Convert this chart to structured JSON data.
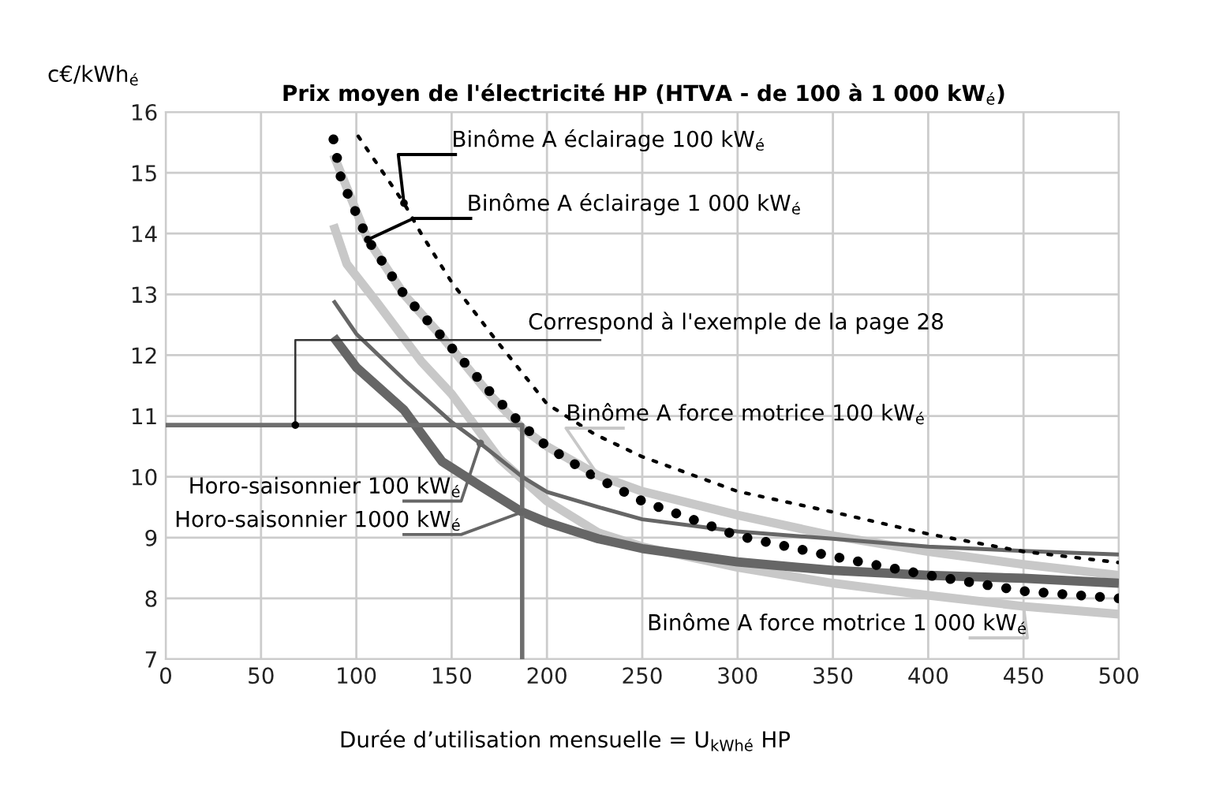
{
  "chart_data": {
    "type": "line",
    "title": "Prix moyen de l'électricité HP (HTVA - de 100 à 1 000 kW$_{é}$)",
    "xlabel": "Durée d’utilisation mensuelle = U$_{kWhé}$ HP",
    "ylabel": "c€/kWh$_{é}$",
    "xlim": [
      0,
      500
    ],
    "ylim": [
      7,
      16
    ],
    "xticks": [
      0,
      50,
      100,
      150,
      200,
      250,
      300,
      350,
      400,
      450,
      500
    ],
    "yticks": [
      7,
      8,
      9,
      10,
      11,
      12,
      13,
      14,
      15,
      16
    ],
    "grid": true,
    "series": [
      {
        "name": "Binôme A éclairage 100 kW$_{é}$",
        "color": "#000000",
        "line_style": "dotted",
        "x": [
          101,
          125,
          134,
          150,
          172,
          200,
          225,
          250,
          300,
          350,
          400,
          450,
          500
        ],
        "values": [
          15.6,
          14.5,
          14.0,
          13.2,
          12.3,
          11.2,
          10.7,
          10.33,
          9.76,
          9.42,
          9.06,
          8.77,
          8.59
        ]
      },
      {
        "name": "Binôme A éclairage 1 000 kW$_{é}$",
        "color": "#000000",
        "line_style": "dotted",
        "x": [
          88,
          92,
          106,
          125,
          145,
          170,
          187,
          200,
          225,
          250,
          300,
          350,
          400,
          450,
          500
        ],
        "values": [
          15.55,
          14.9,
          13.9,
          13.0,
          12.3,
          11.4,
          10.85,
          10.5,
          10.0,
          9.6,
          9.03,
          8.69,
          8.38,
          8.12,
          8.0
        ]
      },
      {
        "name": "Binôme A force motrice 100 kW$_{é}$",
        "color": "#c8c8c8",
        "line_style": "solid",
        "x": [
          88,
          106,
          125,
          145,
          170,
          187,
          200,
          227,
          250,
          300,
          350,
          400,
          450,
          500
        ],
        "values": [
          15.3,
          13.9,
          13.0,
          12.3,
          11.35,
          10.8,
          10.5,
          10.02,
          9.76,
          9.37,
          9.03,
          8.77,
          8.56,
          8.38
        ]
      },
      {
        "name": "Binôme A force motrice 1 000 kW$_{é}$",
        "color": "#c8c8c8",
        "line_style": "solid",
        "x": [
          88,
          95,
          110,
          134,
          150,
          175,
          200,
          227,
          250,
          300,
          350,
          400,
          450,
          500
        ],
        "values": [
          14.15,
          13.5,
          12.9,
          11.9,
          11.36,
          10.3,
          9.6,
          9.08,
          8.85,
          8.51,
          8.25,
          8.05,
          7.87,
          7.74
        ]
      },
      {
        "name": "Horo-saisonnier 100 kW$_{é}$",
        "color": "#666666",
        "line_style": "solid",
        "x": [
          88,
          100,
          125,
          150,
          165,
          187,
          200,
          227,
          250,
          300,
          350,
          400,
          450,
          500
        ],
        "values": [
          12.9,
          12.35,
          11.6,
          10.9,
          10.55,
          10.0,
          9.75,
          9.5,
          9.3,
          9.1,
          8.98,
          8.85,
          8.78,
          8.72
        ]
      },
      {
        "name": "Horo-saisonnier 1000 kW$_{é}$",
        "color": "#666666",
        "line_style": "solid",
        "x": [
          88,
          100,
          125,
          145,
          165,
          187,
          200,
          227,
          250,
          300,
          350,
          400,
          450,
          500
        ],
        "values": [
          12.3,
          11.8,
          11.1,
          10.25,
          9.85,
          9.42,
          9.25,
          8.98,
          8.82,
          8.6,
          8.46,
          8.38,
          8.33,
          8.25
        ]
      },
      {
        "color": "#6e6e6e",
        "line_style": "solid",
        "x": [
          0,
          187,
          187
        ],
        "values": [
          10.85,
          10.85,
          7
        ]
      }
    ],
    "annotations": [
      {
        "text": "Correspond à l'exemple de la page 28",
        "x": 68,
        "y": 10.85
      }
    ]
  }
}
